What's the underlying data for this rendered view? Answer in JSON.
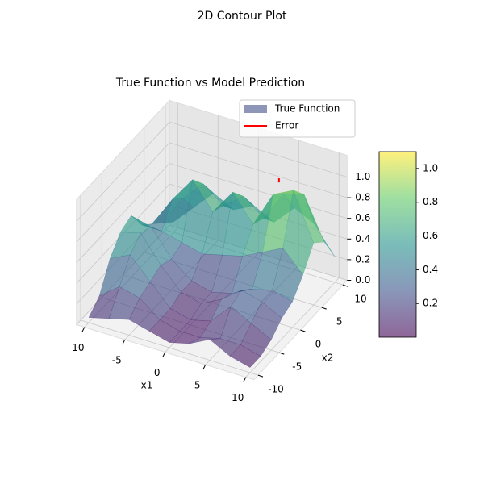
{
  "chart_data": {
    "type": "surface3d",
    "suptitle": "2D Contour Plot",
    "title": "True Function vs Model Prediction",
    "xlabel": "x1",
    "ylabel": "x2",
    "x1": [
      -10,
      -7.5,
      -5,
      -2.5,
      0,
      2.5,
      5,
      7.5,
      10
    ],
    "x2": [
      -10,
      -7.5,
      -5,
      -2.5,
      0,
      2.5,
      5,
      7.5,
      10
    ],
    "xlim": [
      -10,
      10
    ],
    "ylim": [
      -10,
      10
    ],
    "zlim": [
      0,
      1.1
    ],
    "xticks": [
      -10,
      -5,
      0,
      5,
      10
    ],
    "yticks": [
      -10,
      -5,
      0,
      5,
      10
    ],
    "zticks": [
      {
        "value": 0,
        "label": "0.0"
      },
      0.2,
      0.4,
      0.6,
      0.8,
      {
        "value": 1,
        "label": "1.0"
      }
    ],
    "colormap": "viridis",
    "alpha": 0.6,
    "clim": [
      0,
      1.1
    ],
    "cticks": [
      0.2,
      0.4,
      0.6,
      0.8,
      {
        "value": 1,
        "label": "1.0"
      }
    ],
    "series": [
      {
        "name": "True Function",
        "color": "#8d96b8",
        "z": [
          [
            0.05,
            0.1,
            0.15,
            0.1,
            0.05,
            0.1,
            0.2,
            0.1,
            0.05
          ],
          [
            0.15,
            0.3,
            0.25,
            0.1,
            0.05,
            0.05,
            0.1,
            0.1,
            0.05
          ],
          [
            0.4,
            0.5,
            0.3,
            0.1,
            0.05,
            0.1,
            0.3,
            0.2,
            0.1
          ],
          [
            0.55,
            0.6,
            0.35,
            0.15,
            0.1,
            0.2,
            0.35,
            0.3,
            0.2
          ],
          [
            0.6,
            0.55,
            0.3,
            0.15,
            0.1,
            0.15,
            0.25,
            0.3,
            0.25
          ],
          [
            0.4,
            0.4,
            0.35,
            0.3,
            0.35,
            0.4,
            0.5,
            0.6,
            0.4
          ],
          [
            0.3,
            0.6,
            0.85,
            0.6,
            0.85,
            0.6,
            0.95,
            1.05,
            0.6
          ],
          [
            0.2,
            0.5,
            0.7,
            0.55,
            0.7,
            0.55,
            0.85,
            0.9,
            0.5
          ],
          [
            0.1,
            0.3,
            0.5,
            0.4,
            0.5,
            0.4,
            0.6,
            0.5,
            0.25
          ]
        ]
      },
      {
        "name": "Error",
        "color": "red",
        "x1": [
          5.5,
          5.5
        ],
        "x2": [
          5.4,
          5.4
        ],
        "z": [
          1.06,
          1.1
        ]
      }
    ]
  }
}
